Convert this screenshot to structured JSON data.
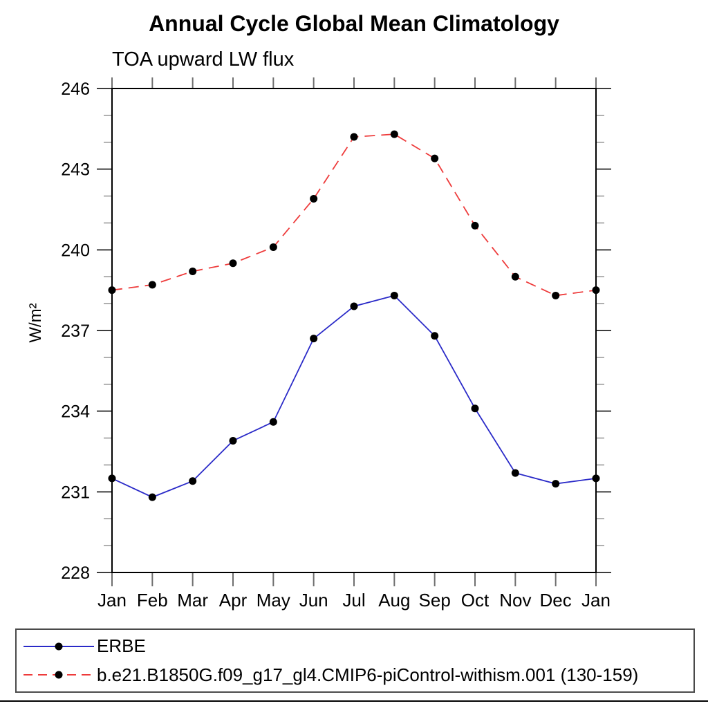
{
  "header": {
    "title": "Annual Cycle Global Mean Climatology",
    "subtitle": "TOA upward LW flux"
  },
  "chart_data": {
    "type": "line",
    "x_categories": [
      "Jan",
      "Feb",
      "Mar",
      "Apr",
      "May",
      "Jun",
      "Jul",
      "Aug",
      "Sep",
      "Oct",
      "Nov",
      "Dec",
      "Jan"
    ],
    "xlabel": "",
    "ylabel": "W/m²",
    "ylim": [
      228,
      246
    ],
    "ytick_major": [
      228,
      231,
      234,
      237,
      240,
      243,
      246
    ],
    "ytick_minor_step": 1,
    "grid": false,
    "legend_position": "bottom",
    "frame_color": "#000000",
    "series": [
      {
        "name": "ERBE",
        "color": "#2a2ac8",
        "style": "solid",
        "marker": "circle",
        "marker_color": "#000000",
        "values": [
          231.5,
          230.8,
          231.4,
          232.9,
          233.6,
          236.7,
          237.9,
          238.3,
          236.8,
          234.1,
          231.7,
          231.3,
          231.5
        ]
      },
      {
        "name": "b.e21.B1850G.f09_g17_gl4.CMIP6-piControl-withism.001 (130-159)",
        "color": "#ee3b3b",
        "style": "dashed",
        "marker": "circle",
        "marker_color": "#000000",
        "values": [
          238.5,
          238.7,
          239.2,
          239.5,
          240.1,
          241.9,
          244.2,
          244.3,
          243.4,
          240.9,
          239.0,
          238.3,
          238.5
        ]
      }
    ]
  }
}
